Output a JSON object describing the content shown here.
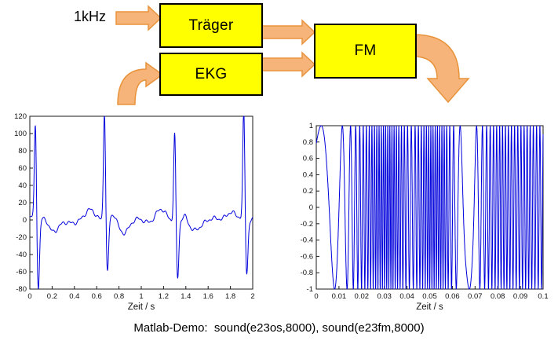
{
  "diagram": {
    "input_label": "1kHz",
    "traeger_label": "Träger",
    "ekg_label": "EKG",
    "fm_label": "FM",
    "box_fill": "#FFFF00",
    "box_stroke": "#000000",
    "arrow_fill": "#F6B47B",
    "arrow_stroke": "#E8933A"
  },
  "caption": "Matlab-Demo:  sound(e23os,8000), sound(e23fm,8000)",
  "chart_data": [
    {
      "name": "ekg-signal",
      "type": "line",
      "title": "",
      "xlabel": "Zeit / s",
      "ylabel": "",
      "xlim": [
        0,
        2
      ],
      "ylim": [
        -80,
        120
      ],
      "xtick_labels": [
        "0",
        "0.2",
        "0.4",
        "0.6",
        "0.8",
        "1",
        "1.2",
        "1.4",
        "1.6",
        "1.8",
        "2"
      ],
      "ytick_labels": [
        "-80",
        "-60",
        "-40",
        "-20",
        "0",
        "20",
        "40",
        "60",
        "80",
        "100",
        "120"
      ],
      "grid": false,
      "legend": null,
      "line_color": "#0000DC",
      "description": "EKG (ECG) waveform with four heartbeats, baseline near 0",
      "beats": [
        {
          "t": 0.05,
          "peak": 103,
          "trough": -77
        },
        {
          "t": 0.67,
          "peak": 120,
          "trough": -60
        },
        {
          "t": 1.3,
          "peak": 97,
          "trough": -62
        },
        {
          "t": 1.92,
          "peak": 120,
          "trough": -58
        }
      ]
    },
    {
      "name": "fm-signal",
      "type": "line",
      "title": "",
      "xlabel": "Zeit / s",
      "ylabel": "",
      "xlim": [
        0,
        0.1
      ],
      "ylim": [
        -1,
        1
      ],
      "xtick_labels": [
        "0",
        "0.01",
        "0.02",
        "0.03",
        "0.04",
        "0.05",
        "0.06",
        "0.07",
        "0.08",
        "0.09",
        "0.1"
      ],
      "ytick_labels": [
        "-1",
        "-0.8",
        "-0.6",
        "-0.4",
        "-0.2",
        "0",
        "0.2",
        "0.4",
        "0.6",
        "0.8",
        "1"
      ],
      "grid": false,
      "legend": null,
      "line_color": "#0000DC",
      "amplitude": 1,
      "description": "Carrier frequency-modulated by the EKG signal: slow oscillation near t=0 and t=0.067 s, dense oscillation elsewhere, amplitude ±1",
      "frequency_profile": [
        [
          0,
          40
        ],
        [
          0.005,
          80
        ],
        [
          0.01,
          140
        ],
        [
          0.014,
          300
        ],
        [
          0.018,
          550
        ],
        [
          0.022,
          750
        ],
        [
          0.027,
          1000
        ],
        [
          0.033,
          1100
        ],
        [
          0.038,
          800
        ],
        [
          0.042,
          550
        ],
        [
          0.046,
          800
        ],
        [
          0.05,
          1050
        ],
        [
          0.056,
          1000
        ],
        [
          0.06,
          550
        ],
        [
          0.063,
          250
        ],
        [
          0.066,
          70
        ],
        [
          0.069,
          120
        ],
        [
          0.072,
          400
        ],
        [
          0.076,
          650
        ],
        [
          0.082,
          800
        ],
        [
          0.088,
          700
        ],
        [
          0.093,
          750
        ],
        [
          0.1,
          650
        ]
      ]
    }
  ]
}
